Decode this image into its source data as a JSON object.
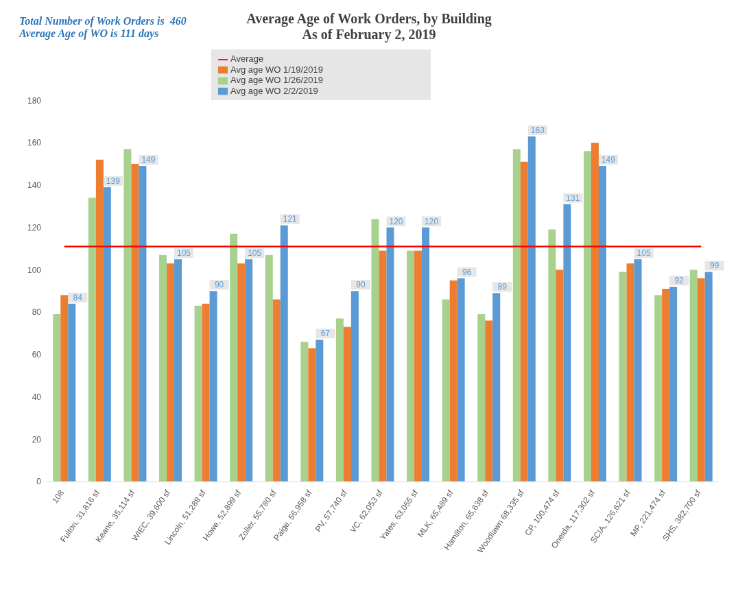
{
  "chart_data": {
    "type": "bar",
    "title": "Average Age of Work Orders, by Building",
    "subtitle": "As of February 2, 2019",
    "annotations": [
      "Total Number of Work Orders is  460",
      "Average Age of WO is 111 days"
    ],
    "categories": [
      "108",
      "Fulton, 31,816 sf",
      "Keane, 35,114 sf",
      "WIEC, 39,600 sf",
      "Lincoln, 51,288 sf",
      "Howe, 52,899 sf",
      "Zoller, 55,780 sf",
      "Paige, 56,958 sf",
      "PV, 57,740 sf",
      "VC, 62,053 sf",
      "Yates, 63,055 sf",
      "MLK, 65,489 sf",
      "Hamilton, 65,638 sf",
      "Woodlawn 68,335 sf",
      "CP, 100,474 sf",
      "Oneida, 117,302 sf",
      "SCIA, 126,621 sf",
      "MP, 221,474 sf",
      "SHS, 382,700 sf"
    ],
    "series": [
      {
        "name": "Avg age WO 1/26/2019",
        "color": "#a9d18e",
        "values": [
          79,
          134,
          157,
          107,
          83,
          117,
          107,
          66,
          77,
          124,
          109,
          86,
          79,
          157,
          119,
          156,
          99,
          88,
          100
        ]
      },
      {
        "name": "Avg age WO 1/19/2019",
        "color": "#ed7d31",
        "values": [
          88,
          152,
          150,
          103,
          84,
          103,
          86,
          63,
          73,
          109,
          109,
          95,
          76,
          151,
          100,
          160,
          103,
          91,
          96
        ]
      },
      {
        "name": "Avg age WO 2/2/2019",
        "color": "#5b9bd5",
        "values": [
          84,
          139,
          149,
          105,
          90,
          105,
          121,
          67,
          90,
          120,
          120,
          96,
          89,
          163,
          131,
          149,
          105,
          92,
          99
        ],
        "value_labels": [
          "84",
          "139",
          "149",
          "105",
          "90",
          "105",
          "121",
          "67",
          "90",
          "120",
          "120",
          "96",
          "89",
          "163",
          "131",
          "149",
          "105",
          "92",
          "99"
        ]
      },
      {
        "name": "Average",
        "type": "line",
        "color": "#ff0000",
        "values": [
          111,
          111,
          111,
          111,
          111,
          111,
          111,
          111,
          111,
          111,
          111,
          111,
          111,
          111,
          111,
          111,
          111,
          111,
          111
        ]
      }
    ],
    "ylim": [
      0,
      180
    ],
    "yticks": [
      0,
      20,
      40,
      60,
      80,
      100,
      120,
      140,
      160,
      180
    ],
    "legend": "top"
  }
}
